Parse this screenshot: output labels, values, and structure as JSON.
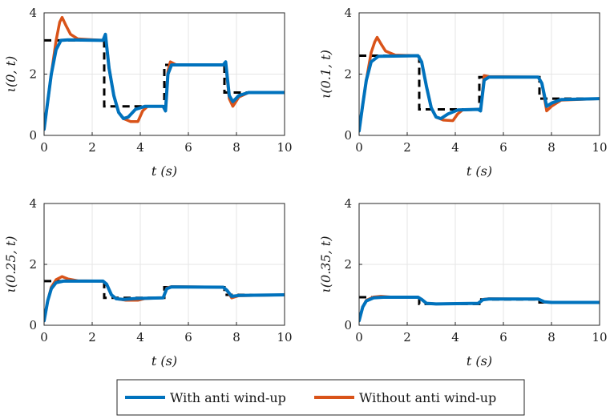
{
  "chart_data": [
    {
      "type": "line",
      "title": "",
      "xlabel": "t (s)",
      "ylabel": "ι(0, t)",
      "xlim": [
        0,
        10
      ],
      "ylim": [
        0,
        4
      ],
      "xticks": [
        "0",
        "2",
        "4",
        "6",
        "8",
        "10"
      ],
      "yticks": [
        "0",
        "2",
        "4"
      ],
      "grid": true,
      "reference": [
        {
          "x": 0,
          "y": 3.1
        },
        {
          "x": 2.5,
          "y": 3.1
        },
        {
          "x": 2.5,
          "y": 0.95
        },
        {
          "x": 5,
          "y": 0.95
        },
        {
          "x": 5,
          "y": 2.3
        },
        {
          "x": 7.5,
          "y": 2.3
        },
        {
          "x": 7.5,
          "y": 1.4
        },
        {
          "x": 10,
          "y": 1.4
        }
      ],
      "series": [
        {
          "name": "With anti wind-up",
          "color": "#0072BD",
          "points": [
            {
              "x": 0,
              "y": 0.2
            },
            {
              "x": 0.15,
              "y": 1.1
            },
            {
              "x": 0.3,
              "y": 2.0
            },
            {
              "x": 0.5,
              "y": 2.8
            },
            {
              "x": 0.7,
              "y": 3.1
            },
            {
              "x": 1.0,
              "y": 3.12
            },
            {
              "x": 2.45,
              "y": 3.1
            },
            {
              "x": 2.55,
              "y": 3.3
            },
            {
              "x": 2.7,
              "y": 2.2
            },
            {
              "x": 2.9,
              "y": 1.3
            },
            {
              "x": 3.1,
              "y": 0.75
            },
            {
              "x": 3.3,
              "y": 0.55
            },
            {
              "x": 3.5,
              "y": 0.6
            },
            {
              "x": 3.8,
              "y": 0.85
            },
            {
              "x": 4.2,
              "y": 0.95
            },
            {
              "x": 4.95,
              "y": 0.95
            },
            {
              "x": 5.05,
              "y": 0.8
            },
            {
              "x": 5.15,
              "y": 2.0
            },
            {
              "x": 5.3,
              "y": 2.3
            },
            {
              "x": 7.45,
              "y": 2.3
            },
            {
              "x": 7.55,
              "y": 2.4
            },
            {
              "x": 7.7,
              "y": 1.3
            },
            {
              "x": 7.85,
              "y": 1.1
            },
            {
              "x": 8.1,
              "y": 1.3
            },
            {
              "x": 8.5,
              "y": 1.4
            },
            {
              "x": 10,
              "y": 1.4
            }
          ]
        },
        {
          "name": "Without anti wind-up",
          "color": "#D95319",
          "points": [
            {
              "x": 0,
              "y": 0.2
            },
            {
              "x": 0.15,
              "y": 1.1
            },
            {
              "x": 0.3,
              "y": 2.0
            },
            {
              "x": 0.5,
              "y": 3.1
            },
            {
              "x": 0.65,
              "y": 3.7
            },
            {
              "x": 0.75,
              "y": 3.85
            },
            {
              "x": 0.9,
              "y": 3.6
            },
            {
              "x": 1.1,
              "y": 3.3
            },
            {
              "x": 1.4,
              "y": 3.15
            },
            {
              "x": 2.45,
              "y": 3.1
            },
            {
              "x": 2.55,
              "y": 3.3
            },
            {
              "x": 2.7,
              "y": 2.2
            },
            {
              "x": 2.9,
              "y": 1.3
            },
            {
              "x": 3.1,
              "y": 0.75
            },
            {
              "x": 3.3,
              "y": 0.55
            },
            {
              "x": 3.6,
              "y": 0.45
            },
            {
              "x": 3.9,
              "y": 0.45
            },
            {
              "x": 4.1,
              "y": 0.8
            },
            {
              "x": 4.3,
              "y": 0.95
            },
            {
              "x": 4.95,
              "y": 0.95
            },
            {
              "x": 5.05,
              "y": 0.8
            },
            {
              "x": 5.15,
              "y": 2.1
            },
            {
              "x": 5.25,
              "y": 2.4
            },
            {
              "x": 5.5,
              "y": 2.3
            },
            {
              "x": 7.45,
              "y": 2.3
            },
            {
              "x": 7.55,
              "y": 2.35
            },
            {
              "x": 7.7,
              "y": 1.2
            },
            {
              "x": 7.85,
              "y": 0.95
            },
            {
              "x": 8.1,
              "y": 1.25
            },
            {
              "x": 8.5,
              "y": 1.4
            },
            {
              "x": 10,
              "y": 1.4
            }
          ]
        }
      ]
    },
    {
      "type": "line",
      "title": "",
      "xlabel": "t (s)",
      "ylabel": "ι(0.1, t)",
      "xlim": [
        0,
        10
      ],
      "ylim": [
        0,
        4
      ],
      "xticks": [
        "0",
        "2",
        "4",
        "6",
        "8",
        "10"
      ],
      "yticks": [
        "0",
        "2",
        "4"
      ],
      "grid": true,
      "reference": [
        {
          "x": 0,
          "y": 2.6
        },
        {
          "x": 2.5,
          "y": 2.6
        },
        {
          "x": 2.5,
          "y": 0.85
        },
        {
          "x": 5,
          "y": 0.85
        },
        {
          "x": 5,
          "y": 1.9
        },
        {
          "x": 7.5,
          "y": 1.9
        },
        {
          "x": 7.5,
          "y": 1.2
        },
        {
          "x": 10,
          "y": 1.2
        }
      ],
      "series": [
        {
          "name": "With anti wind-up",
          "color": "#0072BD",
          "points": [
            {
              "x": 0,
              "y": 0.15
            },
            {
              "x": 0.15,
              "y": 1.0
            },
            {
              "x": 0.3,
              "y": 1.8
            },
            {
              "x": 0.5,
              "y": 2.4
            },
            {
              "x": 0.8,
              "y": 2.58
            },
            {
              "x": 2.45,
              "y": 2.6
            },
            {
              "x": 2.6,
              "y": 2.4
            },
            {
              "x": 2.8,
              "y": 1.6
            },
            {
              "x": 3.0,
              "y": 0.9
            },
            {
              "x": 3.2,
              "y": 0.6
            },
            {
              "x": 3.4,
              "y": 0.55
            },
            {
              "x": 3.7,
              "y": 0.7
            },
            {
              "x": 4.1,
              "y": 0.83
            },
            {
              "x": 4.95,
              "y": 0.85
            },
            {
              "x": 5.05,
              "y": 0.8
            },
            {
              "x": 5.2,
              "y": 1.8
            },
            {
              "x": 5.4,
              "y": 1.9
            },
            {
              "x": 7.45,
              "y": 1.9
            },
            {
              "x": 7.6,
              "y": 1.7
            },
            {
              "x": 7.8,
              "y": 0.95
            },
            {
              "x": 8.0,
              "y": 1.05
            },
            {
              "x": 8.4,
              "y": 1.17
            },
            {
              "x": 10,
              "y": 1.2
            }
          ]
        },
        {
          "name": "Without anti wind-up",
          "color": "#D95319",
          "points": [
            {
              "x": 0,
              "y": 0.15
            },
            {
              "x": 0.15,
              "y": 1.0
            },
            {
              "x": 0.3,
              "y": 1.8
            },
            {
              "x": 0.5,
              "y": 2.7
            },
            {
              "x": 0.65,
              "y": 3.05
            },
            {
              "x": 0.75,
              "y": 3.2
            },
            {
              "x": 0.9,
              "y": 3.0
            },
            {
              "x": 1.1,
              "y": 2.75
            },
            {
              "x": 1.5,
              "y": 2.62
            },
            {
              "x": 2.45,
              "y": 2.6
            },
            {
              "x": 2.6,
              "y": 2.4
            },
            {
              "x": 2.8,
              "y": 1.6
            },
            {
              "x": 3.0,
              "y": 0.9
            },
            {
              "x": 3.2,
              "y": 0.6
            },
            {
              "x": 3.5,
              "y": 0.5
            },
            {
              "x": 3.9,
              "y": 0.48
            },
            {
              "x": 4.1,
              "y": 0.7
            },
            {
              "x": 4.3,
              "y": 0.83
            },
            {
              "x": 4.95,
              "y": 0.85
            },
            {
              "x": 5.05,
              "y": 0.8
            },
            {
              "x": 5.2,
              "y": 1.95
            },
            {
              "x": 5.4,
              "y": 1.92
            },
            {
              "x": 7.45,
              "y": 1.9
            },
            {
              "x": 7.6,
              "y": 1.7
            },
            {
              "x": 7.8,
              "y": 0.8
            },
            {
              "x": 8.0,
              "y": 0.95
            },
            {
              "x": 8.4,
              "y": 1.15
            },
            {
              "x": 10,
              "y": 1.2
            }
          ]
        }
      ]
    },
    {
      "type": "line",
      "title": "",
      "xlabel": "t (s)",
      "ylabel": "ι(0.25, t)",
      "xlim": [
        0,
        10
      ],
      "ylim": [
        0,
        4
      ],
      "xticks": [
        "0",
        "2",
        "4",
        "6",
        "8",
        "10"
      ],
      "yticks": [
        "0",
        "2",
        "4"
      ],
      "grid": true,
      "reference": [
        {
          "x": 0,
          "y": 1.45
        },
        {
          "x": 2.5,
          "y": 1.45
        },
        {
          "x": 2.5,
          "y": 0.9
        },
        {
          "x": 5,
          "y": 0.9
        },
        {
          "x": 5,
          "y": 1.25
        },
        {
          "x": 7.5,
          "y": 1.25
        },
        {
          "x": 7.5,
          "y": 1.0
        },
        {
          "x": 10,
          "y": 1.0
        }
      ],
      "series": [
        {
          "name": "With anti wind-up",
          "color": "#0072BD",
          "points": [
            {
              "x": 0,
              "y": 0.15
            },
            {
              "x": 0.15,
              "y": 0.8
            },
            {
              "x": 0.3,
              "y": 1.2
            },
            {
              "x": 0.5,
              "y": 1.4
            },
            {
              "x": 0.8,
              "y": 1.45
            },
            {
              "x": 2.45,
              "y": 1.45
            },
            {
              "x": 2.6,
              "y": 1.35
            },
            {
              "x": 2.8,
              "y": 1.0
            },
            {
              "x": 3.0,
              "y": 0.87
            },
            {
              "x": 3.3,
              "y": 0.85
            },
            {
              "x": 3.8,
              "y": 0.88
            },
            {
              "x": 4.95,
              "y": 0.9
            },
            {
              "x": 5.1,
              "y": 1.2
            },
            {
              "x": 5.3,
              "y": 1.26
            },
            {
              "x": 7.45,
              "y": 1.25
            },
            {
              "x": 7.6,
              "y": 1.15
            },
            {
              "x": 7.8,
              "y": 0.95
            },
            {
              "x": 8.1,
              "y": 0.98
            },
            {
              "x": 10,
              "y": 1.0
            }
          ]
        },
        {
          "name": "Without anti wind-up",
          "color": "#D95319",
          "points": [
            {
              "x": 0,
              "y": 0.15
            },
            {
              "x": 0.15,
              "y": 0.8
            },
            {
              "x": 0.3,
              "y": 1.25
            },
            {
              "x": 0.5,
              "y": 1.5
            },
            {
              "x": 0.75,
              "y": 1.6
            },
            {
              "x": 1.0,
              "y": 1.52
            },
            {
              "x": 1.4,
              "y": 1.46
            },
            {
              "x": 2.45,
              "y": 1.45
            },
            {
              "x": 2.6,
              "y": 1.35
            },
            {
              "x": 2.8,
              "y": 1.0
            },
            {
              "x": 3.0,
              "y": 0.87
            },
            {
              "x": 3.4,
              "y": 0.82
            },
            {
              "x": 3.9,
              "y": 0.82
            },
            {
              "x": 4.2,
              "y": 0.88
            },
            {
              "x": 4.95,
              "y": 0.9
            },
            {
              "x": 5.1,
              "y": 1.22
            },
            {
              "x": 5.3,
              "y": 1.27
            },
            {
              "x": 7.45,
              "y": 1.25
            },
            {
              "x": 7.6,
              "y": 1.15
            },
            {
              "x": 7.8,
              "y": 0.9
            },
            {
              "x": 8.1,
              "y": 0.97
            },
            {
              "x": 10,
              "y": 1.0
            }
          ]
        }
      ]
    },
    {
      "type": "line",
      "title": "",
      "xlabel": "t (s)",
      "ylabel": "ι(0.35, t)",
      "xlim": [
        0,
        10
      ],
      "ylim": [
        0,
        4
      ],
      "xticks": [
        "0",
        "2",
        "4",
        "6",
        "8",
        "10"
      ],
      "yticks": [
        "0",
        "2",
        "4"
      ],
      "grid": true,
      "reference": [
        {
          "x": 0,
          "y": 0.92
        },
        {
          "x": 2.5,
          "y": 0.92
        },
        {
          "x": 2.5,
          "y": 0.7
        },
        {
          "x": 5,
          "y": 0.7
        },
        {
          "x": 5,
          "y": 0.85
        },
        {
          "x": 7.5,
          "y": 0.85
        },
        {
          "x": 7.5,
          "y": 0.75
        },
        {
          "x": 10,
          "y": 0.75
        }
      ],
      "series": [
        {
          "name": "With anti wind-up",
          "color": "#0072BD",
          "points": [
            {
              "x": 0,
              "y": 0.15
            },
            {
              "x": 0.15,
              "y": 0.6
            },
            {
              "x": 0.3,
              "y": 0.8
            },
            {
              "x": 0.6,
              "y": 0.9
            },
            {
              "x": 1.0,
              "y": 0.92
            },
            {
              "x": 2.45,
              "y": 0.92
            },
            {
              "x": 2.6,
              "y": 0.85
            },
            {
              "x": 2.8,
              "y": 0.72
            },
            {
              "x": 3.2,
              "y": 0.7
            },
            {
              "x": 4.95,
              "y": 0.72
            },
            {
              "x": 5.15,
              "y": 0.84
            },
            {
              "x": 5.4,
              "y": 0.86
            },
            {
              "x": 7.45,
              "y": 0.86
            },
            {
              "x": 7.7,
              "y": 0.77
            },
            {
              "x": 8.0,
              "y": 0.75
            },
            {
              "x": 10,
              "y": 0.75
            }
          ]
        },
        {
          "name": "Without anti wind-up",
          "color": "#D95319",
          "points": [
            {
              "x": 0,
              "y": 0.15
            },
            {
              "x": 0.15,
              "y": 0.6
            },
            {
              "x": 0.3,
              "y": 0.82
            },
            {
              "x": 0.6,
              "y": 0.93
            },
            {
              "x": 0.9,
              "y": 0.95
            },
            {
              "x": 1.3,
              "y": 0.93
            },
            {
              "x": 2.45,
              "y": 0.92
            },
            {
              "x": 2.6,
              "y": 0.85
            },
            {
              "x": 2.8,
              "y": 0.72
            },
            {
              "x": 3.2,
              "y": 0.7
            },
            {
              "x": 4.95,
              "y": 0.72
            },
            {
              "x": 5.15,
              "y": 0.85
            },
            {
              "x": 5.4,
              "y": 0.87
            },
            {
              "x": 7.45,
              "y": 0.86
            },
            {
              "x": 7.7,
              "y": 0.76
            },
            {
              "x": 8.0,
              "y": 0.75
            },
            {
              "x": 10,
              "y": 0.75
            }
          ]
        }
      ]
    }
  ],
  "legend": {
    "placement": "bottom-center",
    "entries": [
      {
        "label": "With anti wind-up",
        "color": "#0072BD"
      },
      {
        "label": "Without anti wind-up",
        "color": "#D95319"
      }
    ]
  },
  "colors": {
    "reference": "#000000",
    "grid": "#e5e5e5",
    "axis": "#262626"
  }
}
